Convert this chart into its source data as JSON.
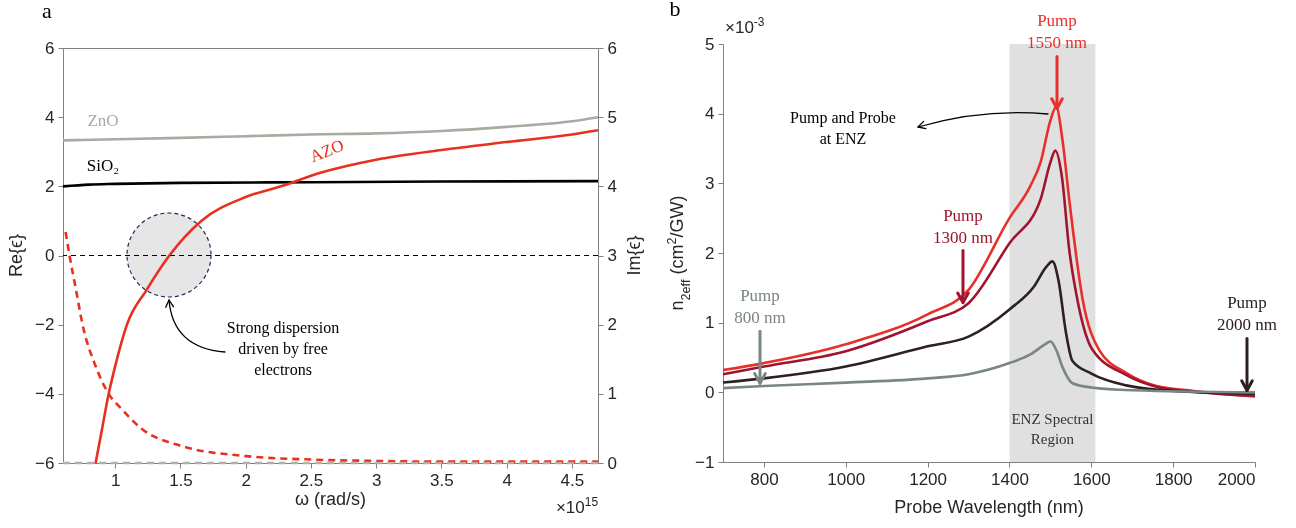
{
  "chart_data": [
    {
      "type": "line",
      "title": "a",
      "xlabel": "ω (rad/s)",
      "ylabel": "Re{ϵ}",
      "y2label": "Im{ϵ}",
      "xlim": [
        0.6,
        4.7
      ],
      "xticks": [
        1,
        1.5,
        2,
        2.5,
        3,
        3.5,
        4,
        4.5
      ],
      "ylim": [
        -6,
        6
      ],
      "yticks": [
        -6,
        -4,
        -2,
        0,
        2,
        4,
        6
      ],
      "y2lim": [
        0,
        6
      ],
      "y2ticks": [
        0,
        1,
        2,
        3,
        4,
        5,
        6
      ],
      "series": [
        {
          "name": "ZnO",
          "color": "#a9aaa0",
          "x": [
            0.6,
            1,
            1.5,
            2,
            2.5,
            3,
            3.5,
            4,
            4.5,
            4.7
          ],
          "values": [
            3.33,
            3.36,
            3.4,
            3.45,
            3.5,
            3.53,
            3.6,
            3.72,
            3.88,
            4.0
          ]
        },
        {
          "name": "SiO₂",
          "color": "#000000",
          "x": [
            0.6,
            0.8,
            1,
            1.5,
            2.5,
            3.5,
            4.7
          ],
          "values": [
            2.0,
            2.05,
            2.07,
            2.1,
            2.12,
            2.14,
            2.15
          ]
        },
        {
          "name": "AZO",
          "color": "#e8301f",
          "x": [
            0.85,
            0.9,
            0.95,
            1.0,
            1.09,
            1.24,
            1.415,
            1.66,
            2.0,
            2.27,
            2.58,
            3,
            3.5,
            4,
            4.5,
            4.7
          ],
          "values": [
            -6,
            -5,
            -4,
            -3.2,
            -2,
            -1,
            0,
            1,
            1.69,
            2.0,
            2.4,
            2.77,
            3.05,
            3.28,
            3.5,
            3.62
          ]
        },
        {
          "color": "#e8301f",
          "axis": "y2",
          "line_style": "dashed",
          "x": [
            0.62,
            0.65,
            0.7,
            0.75,
            0.85,
            0.95,
            1.05,
            1.2,
            1.5,
            2,
            2.5,
            3,
            3.5,
            4,
            4.7
          ],
          "values": [
            3.34,
            3.0,
            2.5,
            2.0,
            1.4,
            1.0,
            0.78,
            0.5,
            0.25,
            0.1,
            0.05,
            0.03,
            0.02,
            0.02,
            0.02
          ]
        },
        {
          "color": "#b0b0a8",
          "axis": "y2",
          "line_style": "dashed",
          "x": [
            0.6,
            4.7
          ],
          "values": [
            0,
            0
          ]
        }
      ],
      "ref_lines": [
        {
          "axis": "y",
          "value": 0,
          "color": "#000000",
          "line_style": "dashed"
        }
      ],
      "annotations": [
        "Strong dispersion\ndriven by free\nelectrons",
        "×10$^{15}$"
      ]
    },
    {
      "type": "line",
      "title": "b",
      "xlabel": "Probe Wavelength (nm)",
      "ylabel": "n$_{2eff}$ (cm$^{2}$/GW)",
      "xlim": [
        700,
        2000
      ],
      "xticks": [
        800,
        1000,
        1200,
        1400,
        1600,
        1800,
        2000
      ],
      "ylim": [
        -1,
        5
      ],
      "yticks": [
        -1,
        0,
        1,
        2,
        3,
        4,
        5
      ],
      "series": [
        {
          "name": "Pump\n1550 nm",
          "color": "#e8302a",
          "x": [
            700,
            800,
            1000,
            1200,
            1300,
            1400,
            1450,
            1476,
            1500,
            1514,
            1530,
            1546,
            1579,
            1619,
            1685,
            1759,
            1850,
            2000
          ],
          "values": [
            0.32,
            0.42,
            0.69,
            1.12,
            1.47,
            2.5,
            2.95,
            3.3,
            3.9,
            4.1,
            3.6,
            2.77,
            1.33,
            0.61,
            0.28,
            0.09,
            0.02,
            -0.06
          ]
        },
        {
          "name": "Pump\n1300 nm",
          "color": "#a0142e",
          "x": [
            700,
            800,
            1000,
            1200,
            1300,
            1400,
            1476,
            1500,
            1512,
            1528,
            1546,
            1566,
            1603,
            1685,
            1759,
            1850,
            2000
          ],
          "values": [
            0.26,
            0.37,
            0.59,
            1.02,
            1.28,
            2.14,
            2.77,
            3.3,
            3.47,
            3.1,
            2.05,
            1.33,
            0.61,
            0.25,
            0.08,
            0.01,
            -0.05
          ]
        },
        {
          "name": "Pump\n2000 nm",
          "color": "#2e2020",
          "x": [
            700,
            800,
            1000,
            1200,
            1300,
            1400,
            1460,
            1490,
            1505,
            1520,
            1538,
            1554,
            1600,
            1685,
            1800,
            2000
          ],
          "values": [
            0.14,
            0.2,
            0.37,
            0.66,
            0.8,
            1.19,
            1.52,
            1.8,
            1.88,
            1.6,
            0.86,
            0.45,
            0.27,
            0.1,
            0.02,
            -0.02
          ]
        },
        {
          "name": "Pump\n800 nm",
          "color": "#7a8585",
          "x": [
            700,
            800,
            1000,
            1200,
            1300,
            1400,
            1450,
            1485,
            1500,
            1515,
            1529,
            1554,
            1600,
            1700,
            2000
          ],
          "values": [
            0.06,
            0.09,
            0.14,
            0.2,
            0.26,
            0.42,
            0.54,
            0.68,
            0.73,
            0.6,
            0.37,
            0.13,
            0.07,
            0.03,
            0.0
          ]
        }
      ],
      "bands": [
        {
          "axis": "x",
          "from": 1400,
          "to": 1610,
          "label": "ENZ Spectral\nRegion",
          "color": "#e0e0e0"
        }
      ],
      "annotations": [
        "Pump and Probe\nat ENZ",
        "×10$^{-3}$"
      ]
    }
  ]
}
